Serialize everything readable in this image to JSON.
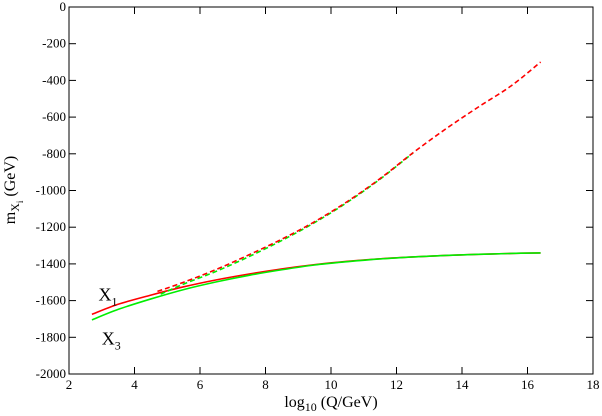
{
  "chart_data": {
    "type": "line",
    "xlabel": {
      "base": "log",
      "subscript": "10",
      "rest": " (Q/GeV)"
    },
    "ylabel": {
      "base": "m",
      "subscript": "X",
      "subsubscript": "i",
      "rest": " (GeV)"
    },
    "xlim": [
      2,
      18
    ],
    "ylim": [
      -2000,
      0
    ],
    "xticks": [
      2,
      4,
      6,
      8,
      10,
      12,
      14,
      16,
      18
    ],
    "yticks": [
      0,
      -200,
      -400,
      -600,
      -800,
      -1000,
      -1200,
      -1400,
      -1600,
      -1800,
      -2000
    ],
    "grid": false,
    "legend": "none",
    "annotations": [
      {
        "id": "x1",
        "base": "X",
        "subscript": "1",
        "x": 2.9,
        "y": -1600
      },
      {
        "id": "x3",
        "base": "X",
        "subscript": "3",
        "x": 3.0,
        "y": -1840
      }
    ],
    "series": [
      {
        "color": "#ff0000",
        "style": "solid",
        "x": [
          2.7,
          3.5,
          4.5,
          5.5,
          6.5,
          7.5,
          8.5,
          9.5,
          10.5,
          11.5,
          12.5,
          13.5,
          14.5,
          15.5,
          16.4
        ],
        "y": [
          -1675,
          -1620,
          -1570,
          -1525,
          -1487,
          -1455,
          -1427,
          -1404,
          -1386,
          -1372,
          -1362,
          -1354,
          -1348,
          -1343,
          -1340
        ]
      },
      {
        "color": "#00ee00",
        "style": "solid",
        "x": [
          2.7,
          3.5,
          4.5,
          5.5,
          6.5,
          7.5,
          8.5,
          9.5,
          10.5,
          11.5,
          12.5,
          13.5,
          14.5,
          15.5,
          16.4
        ],
        "y": [
          -1705,
          -1648,
          -1591,
          -1540,
          -1498,
          -1462,
          -1432,
          -1406,
          -1388,
          -1373,
          -1362,
          -1354,
          -1348,
          -1343,
          -1340
        ]
      },
      {
        "color": "#ff0000",
        "style": "dashed",
        "x": [
          4.7,
          5.5,
          6.5,
          7.5,
          8.5,
          9.5,
          10.5,
          11.5,
          12.5,
          13.5,
          14.5,
          15.5,
          16.4
        ],
        "y": [
          -1550,
          -1500,
          -1430,
          -1350,
          -1265,
          -1170,
          -1060,
          -935,
          -795,
          -665,
          -545,
          -430,
          -300
        ]
      },
      {
        "color": "#00ee00",
        "style": "dashed",
        "x": [
          4.8,
          5.5,
          6.5,
          7.5,
          8.5,
          9.5,
          10.5,
          11.5,
          12.5
        ],
        "y": [
          -1565,
          -1510,
          -1440,
          -1360,
          -1272,
          -1175,
          -1064,
          -938,
          -796
        ]
      }
    ]
  }
}
